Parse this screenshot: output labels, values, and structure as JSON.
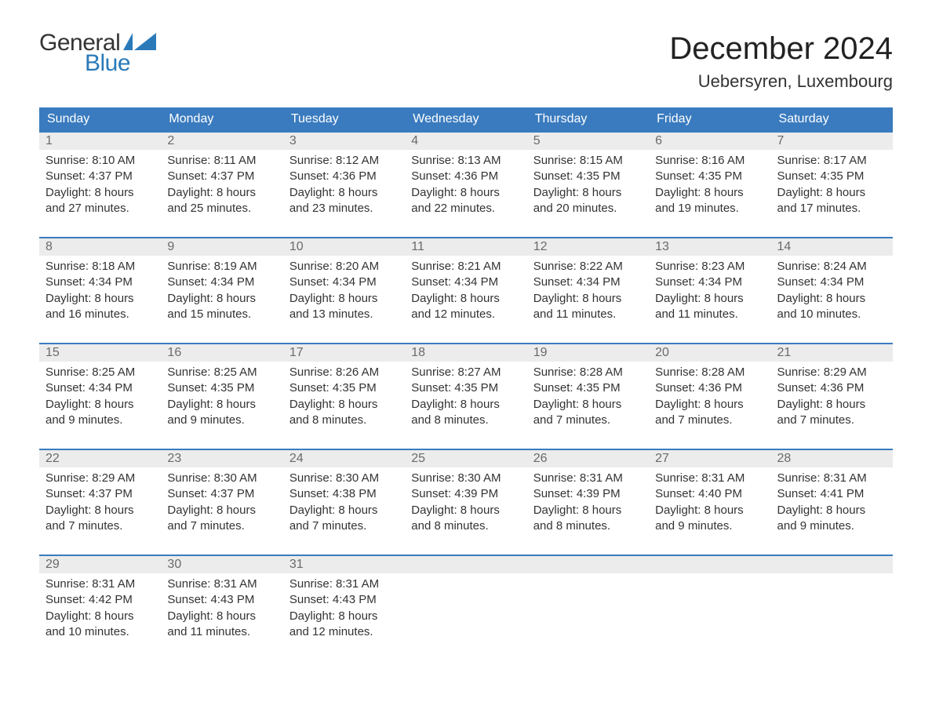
{
  "logo": {
    "word1": "General",
    "word2": "Blue",
    "word1_color": "#333333",
    "word2_color": "#2a7ab9"
  },
  "title": "December 2024",
  "location": "Uebersyren, Luxembourg",
  "colors": {
    "header_bg": "#3a7bbf",
    "header_text": "#ffffff",
    "daynum_bg": "#ececec",
    "daynum_text": "#6a6a6a",
    "body_text": "#333333",
    "week_border": "#3a7bbf",
    "page_bg": "#ffffff"
  },
  "typography": {
    "title_fontsize": 40,
    "location_fontsize": 22,
    "header_fontsize": 16,
    "body_fontsize": 15
  },
  "day_names": [
    "Sunday",
    "Monday",
    "Tuesday",
    "Wednesday",
    "Thursday",
    "Friday",
    "Saturday"
  ],
  "weeks": [
    [
      {
        "n": "1",
        "sr": "Sunrise: 8:10 AM",
        "ss": "Sunset: 4:37 PM",
        "d1": "Daylight: 8 hours",
        "d2": "and 27 minutes."
      },
      {
        "n": "2",
        "sr": "Sunrise: 8:11 AM",
        "ss": "Sunset: 4:37 PM",
        "d1": "Daylight: 8 hours",
        "d2": "and 25 minutes."
      },
      {
        "n": "3",
        "sr": "Sunrise: 8:12 AM",
        "ss": "Sunset: 4:36 PM",
        "d1": "Daylight: 8 hours",
        "d2": "and 23 minutes."
      },
      {
        "n": "4",
        "sr": "Sunrise: 8:13 AM",
        "ss": "Sunset: 4:36 PM",
        "d1": "Daylight: 8 hours",
        "d2": "and 22 minutes."
      },
      {
        "n": "5",
        "sr": "Sunrise: 8:15 AM",
        "ss": "Sunset: 4:35 PM",
        "d1": "Daylight: 8 hours",
        "d2": "and 20 minutes."
      },
      {
        "n": "6",
        "sr": "Sunrise: 8:16 AM",
        "ss": "Sunset: 4:35 PM",
        "d1": "Daylight: 8 hours",
        "d2": "and 19 minutes."
      },
      {
        "n": "7",
        "sr": "Sunrise: 8:17 AM",
        "ss": "Sunset: 4:35 PM",
        "d1": "Daylight: 8 hours",
        "d2": "and 17 minutes."
      }
    ],
    [
      {
        "n": "8",
        "sr": "Sunrise: 8:18 AM",
        "ss": "Sunset: 4:34 PM",
        "d1": "Daylight: 8 hours",
        "d2": "and 16 minutes."
      },
      {
        "n": "9",
        "sr": "Sunrise: 8:19 AM",
        "ss": "Sunset: 4:34 PM",
        "d1": "Daylight: 8 hours",
        "d2": "and 15 minutes."
      },
      {
        "n": "10",
        "sr": "Sunrise: 8:20 AM",
        "ss": "Sunset: 4:34 PM",
        "d1": "Daylight: 8 hours",
        "d2": "and 13 minutes."
      },
      {
        "n": "11",
        "sr": "Sunrise: 8:21 AM",
        "ss": "Sunset: 4:34 PM",
        "d1": "Daylight: 8 hours",
        "d2": "and 12 minutes."
      },
      {
        "n": "12",
        "sr": "Sunrise: 8:22 AM",
        "ss": "Sunset: 4:34 PM",
        "d1": "Daylight: 8 hours",
        "d2": "and 11 minutes."
      },
      {
        "n": "13",
        "sr": "Sunrise: 8:23 AM",
        "ss": "Sunset: 4:34 PM",
        "d1": "Daylight: 8 hours",
        "d2": "and 11 minutes."
      },
      {
        "n": "14",
        "sr": "Sunrise: 8:24 AM",
        "ss": "Sunset: 4:34 PM",
        "d1": "Daylight: 8 hours",
        "d2": "and 10 minutes."
      }
    ],
    [
      {
        "n": "15",
        "sr": "Sunrise: 8:25 AM",
        "ss": "Sunset: 4:34 PM",
        "d1": "Daylight: 8 hours",
        "d2": "and 9 minutes."
      },
      {
        "n": "16",
        "sr": "Sunrise: 8:25 AM",
        "ss": "Sunset: 4:35 PM",
        "d1": "Daylight: 8 hours",
        "d2": "and 9 minutes."
      },
      {
        "n": "17",
        "sr": "Sunrise: 8:26 AM",
        "ss": "Sunset: 4:35 PM",
        "d1": "Daylight: 8 hours",
        "d2": "and 8 minutes."
      },
      {
        "n": "18",
        "sr": "Sunrise: 8:27 AM",
        "ss": "Sunset: 4:35 PM",
        "d1": "Daylight: 8 hours",
        "d2": "and 8 minutes."
      },
      {
        "n": "19",
        "sr": "Sunrise: 8:28 AM",
        "ss": "Sunset: 4:35 PM",
        "d1": "Daylight: 8 hours",
        "d2": "and 7 minutes."
      },
      {
        "n": "20",
        "sr": "Sunrise: 8:28 AM",
        "ss": "Sunset: 4:36 PM",
        "d1": "Daylight: 8 hours",
        "d2": "and 7 minutes."
      },
      {
        "n": "21",
        "sr": "Sunrise: 8:29 AM",
        "ss": "Sunset: 4:36 PM",
        "d1": "Daylight: 8 hours",
        "d2": "and 7 minutes."
      }
    ],
    [
      {
        "n": "22",
        "sr": "Sunrise: 8:29 AM",
        "ss": "Sunset: 4:37 PM",
        "d1": "Daylight: 8 hours",
        "d2": "and 7 minutes."
      },
      {
        "n": "23",
        "sr": "Sunrise: 8:30 AM",
        "ss": "Sunset: 4:37 PM",
        "d1": "Daylight: 8 hours",
        "d2": "and 7 minutes."
      },
      {
        "n": "24",
        "sr": "Sunrise: 8:30 AM",
        "ss": "Sunset: 4:38 PM",
        "d1": "Daylight: 8 hours",
        "d2": "and 7 minutes."
      },
      {
        "n": "25",
        "sr": "Sunrise: 8:30 AM",
        "ss": "Sunset: 4:39 PM",
        "d1": "Daylight: 8 hours",
        "d2": "and 8 minutes."
      },
      {
        "n": "26",
        "sr": "Sunrise: 8:31 AM",
        "ss": "Sunset: 4:39 PM",
        "d1": "Daylight: 8 hours",
        "d2": "and 8 minutes."
      },
      {
        "n": "27",
        "sr": "Sunrise: 8:31 AM",
        "ss": "Sunset: 4:40 PM",
        "d1": "Daylight: 8 hours",
        "d2": "and 9 minutes."
      },
      {
        "n": "28",
        "sr": "Sunrise: 8:31 AM",
        "ss": "Sunset: 4:41 PM",
        "d1": "Daylight: 8 hours",
        "d2": "and 9 minutes."
      }
    ],
    [
      {
        "n": "29",
        "sr": "Sunrise: 8:31 AM",
        "ss": "Sunset: 4:42 PM",
        "d1": "Daylight: 8 hours",
        "d2": "and 10 minutes."
      },
      {
        "n": "30",
        "sr": "Sunrise: 8:31 AM",
        "ss": "Sunset: 4:43 PM",
        "d1": "Daylight: 8 hours",
        "d2": "and 11 minutes."
      },
      {
        "n": "31",
        "sr": "Sunrise: 8:31 AM",
        "ss": "Sunset: 4:43 PM",
        "d1": "Daylight: 8 hours",
        "d2": "and 12 minutes."
      },
      {
        "empty": true
      },
      {
        "empty": true
      },
      {
        "empty": true
      },
      {
        "empty": true
      }
    ]
  ]
}
